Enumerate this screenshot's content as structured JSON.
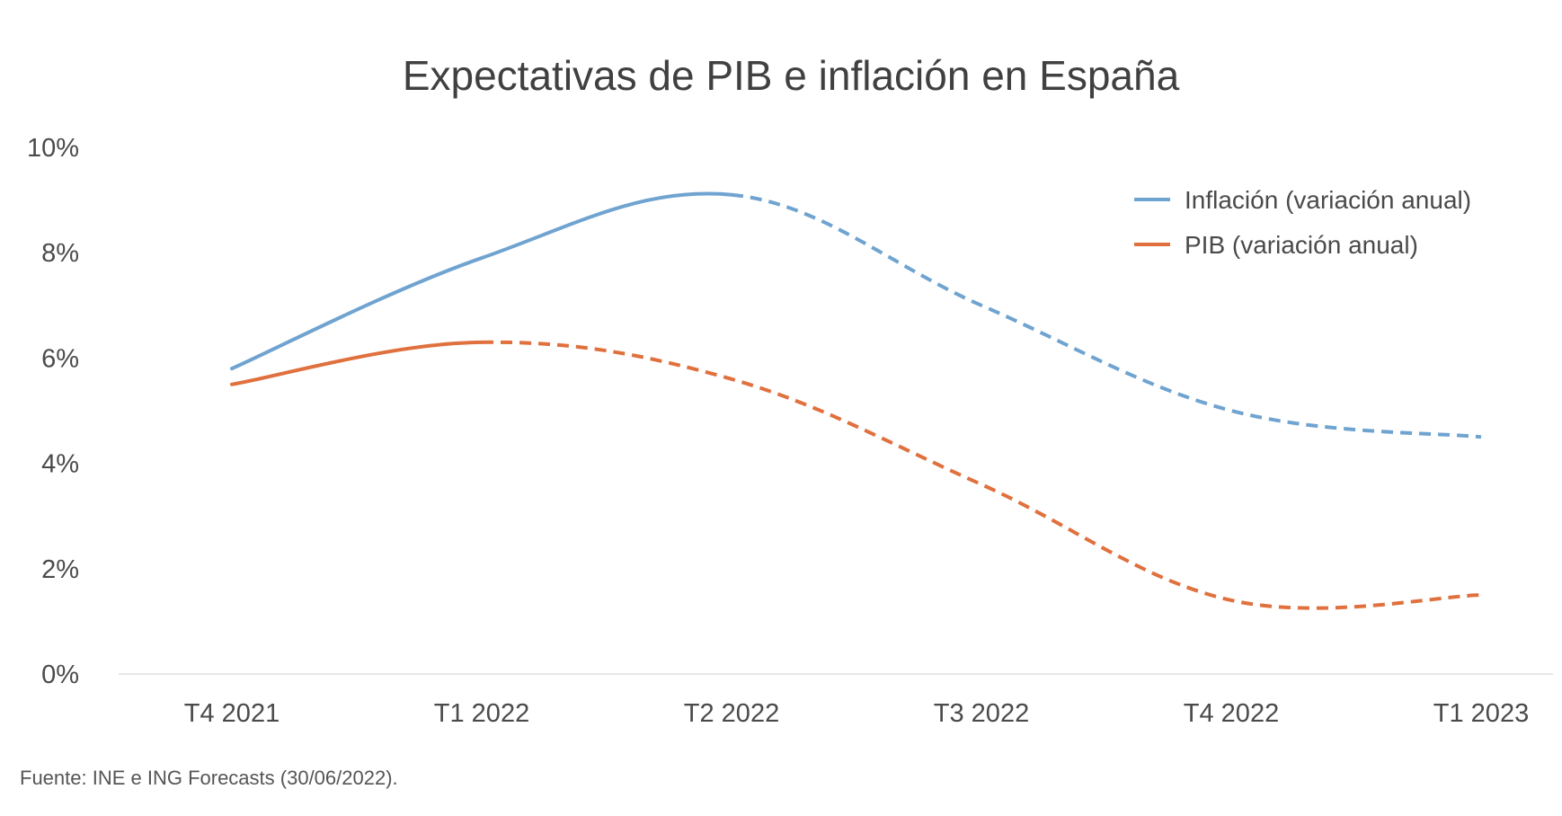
{
  "chart_data": {
    "type": "line",
    "title": "Expectativas de PIB e inflación en España",
    "source": "Fuente: INE e ING Forecasts (30/06/2022).",
    "categories": [
      "T4 2021",
      "T1 2022",
      "T2 2022",
      "T3 2022",
      "T4 2022",
      "T1 2023"
    ],
    "y_ticks": [
      "0%",
      "2%",
      "4%",
      "6%",
      "8%",
      "10%"
    ],
    "ylim": [
      0,
      10
    ],
    "grid": false,
    "legend_position": "top-right",
    "series": [
      {
        "name": "Inflación (variación anual)",
        "color": "#6fa3d0",
        "values": [
          5.8,
          7.9,
          9.1,
          7.0,
          5.0,
          4.5
        ],
        "actual_through_index": 2
      },
      {
        "name": "PIB (variación anual)",
        "color": "#e0703d",
        "values": [
          5.5,
          6.3,
          5.6,
          3.6,
          1.4,
          1.5
        ],
        "actual_through_index": 1
      }
    ]
  }
}
